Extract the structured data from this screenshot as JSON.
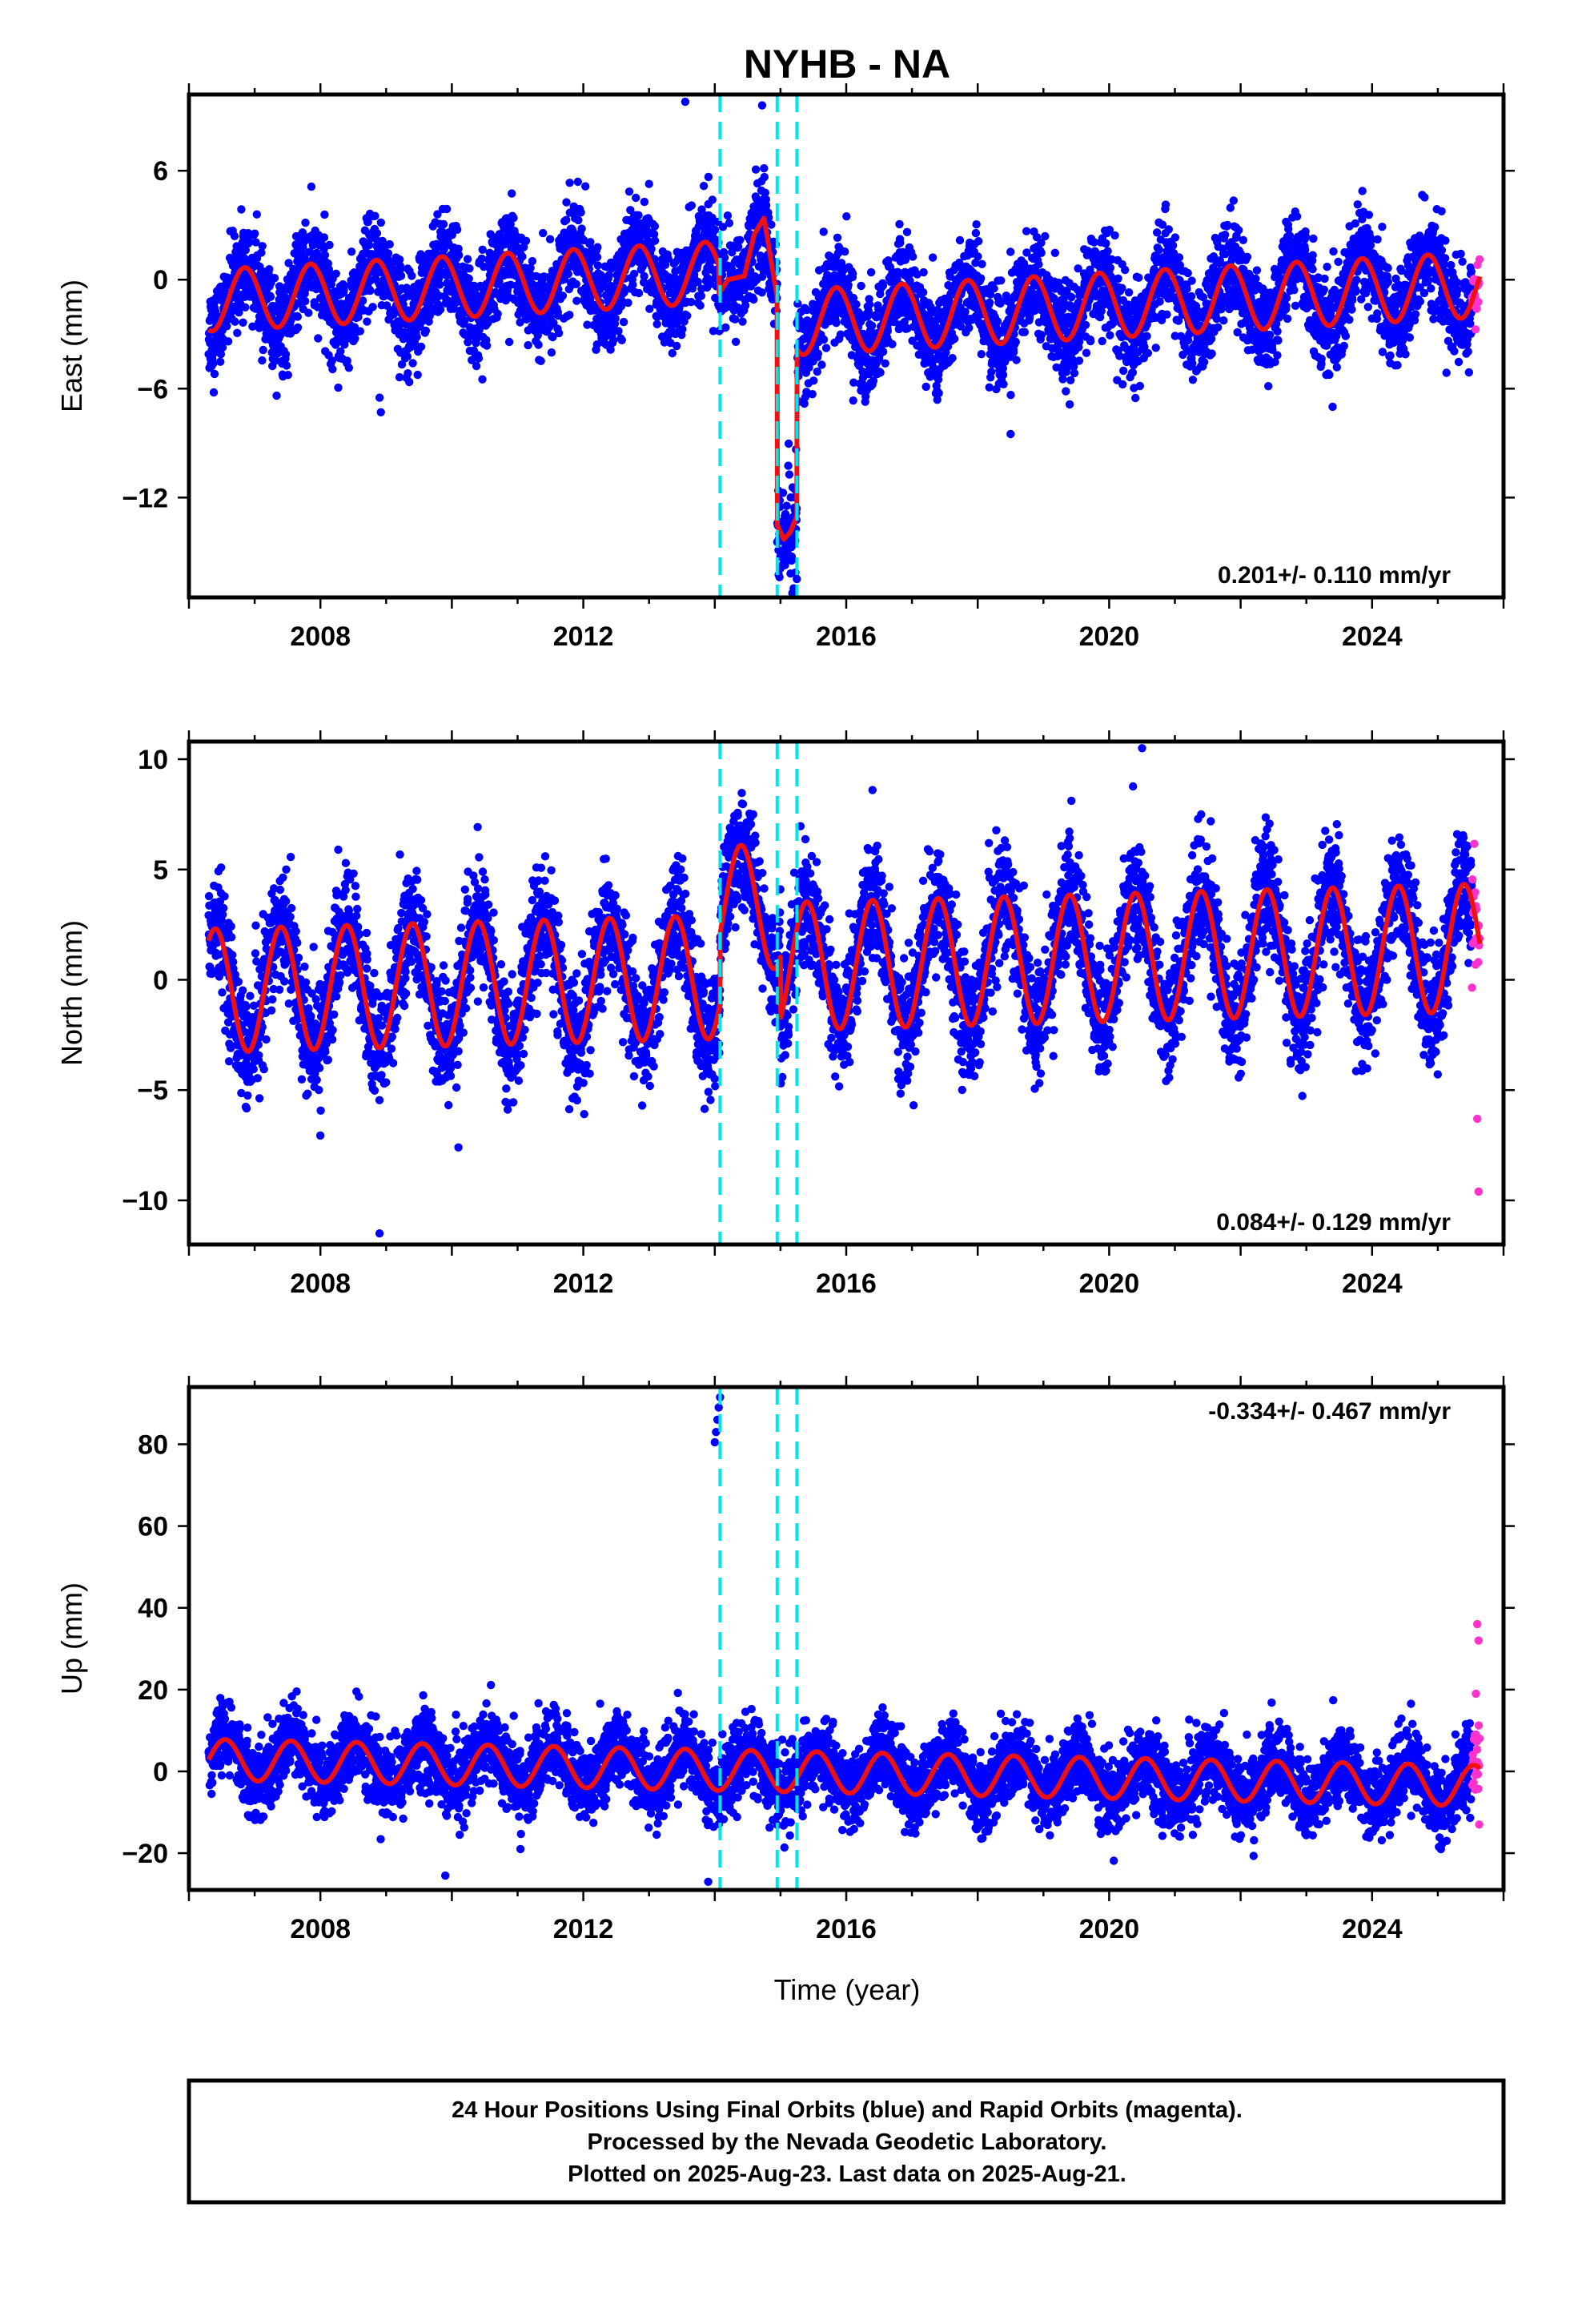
{
  "title": "NYHB - NA",
  "xlabel": "Time (year)",
  "caption": [
    "24 Hour Positions Using Final Orbits (blue) and Rapid Orbits (magenta).",
    "Processed by the Nevada Geodetic Laboratory.",
    "Plotted on 2025-Aug-23. Last data on 2025-Aug-21."
  ],
  "colors": {
    "final_orbits": "#0000ff",
    "rapid_orbits": "#ff33cc",
    "model": "#ee1111",
    "event_lines": "#00e5ee"
  },
  "chart_data": [
    {
      "type": "scatter",
      "component": "East",
      "ylabel": "East (mm)",
      "xlim": [
        2006.0,
        2026.0
      ],
      "ylim": [
        -17.5,
        10.2
      ],
      "yticks": [
        -12,
        -6,
        0,
        6
      ],
      "xticks": [
        2008,
        2012,
        2016,
        2020,
        2024
      ],
      "rate_text": "0.201+/- 0.110 mm/yr",
      "rate_position": "bottom-right",
      "event_lines": [
        2014.08,
        2014.95,
        2015.25
      ],
      "final_range": [
        2006.3,
        2025.52
      ],
      "rapid_range": [
        2025.52,
        2025.64
      ],
      "model": {
        "segments": [
          {
            "from": 2006.3,
            "to": 2014.06,
            "offset": 0.6,
            "trend": 0.2,
            "amplitude": 1.7,
            "phase": -0.4
          },
          {
            "from": 2014.06,
            "to": 2014.95,
            "points": [
              [
                2014.06,
                -0.8
              ],
              [
                2014.2,
                0.0
              ],
              [
                2014.45,
                0.2
              ],
              [
                2014.6,
                2.5
              ],
              [
                2014.75,
                3.4
              ],
              [
                2014.95,
                -1.0
              ]
            ]
          },
          {
            "from": 2014.95,
            "to": 2015.25,
            "points": [
              [
                2014.95,
                -13.5
              ],
              [
                2015.05,
                -14.3
              ],
              [
                2015.15,
                -13.9
              ],
              [
                2015.25,
                -13.0
              ]
            ]
          },
          {
            "from": 2015.25,
            "to": 2025.64,
            "offset": -2.4,
            "trend": 0.2,
            "amplitude": 1.8,
            "phase": -0.4
          }
        ],
        "noise_sd": 1.3,
        "outliers": [
          [
            2008.9,
            -6.5
          ],
          [
            2008.92,
            -7.3
          ],
          [
            2018.5,
            -8.5
          ],
          [
            2023.4,
            -7.0
          ],
          [
            2013.55,
            9.8
          ],
          [
            2014.72,
            9.6
          ],
          [
            2015.2,
            -17.0
          ]
        ]
      }
    },
    {
      "type": "scatter",
      "component": "North",
      "ylabel": "North (mm)",
      "xlim": [
        2006.0,
        2026.0
      ],
      "ylim": [
        -12.0,
        10.8
      ],
      "yticks": [
        -10,
        -5,
        0,
        5,
        10
      ],
      "xticks": [
        2008,
        2012,
        2016,
        2020,
        2024
      ],
      "rate_text": "0.084+/- 0.129 mm/yr",
      "rate_position": "bottom-right",
      "event_lines": [
        2014.08,
        2014.95,
        2015.25
      ],
      "final_range": [
        2006.3,
        2025.52
      ],
      "rapid_range": [
        2025.52,
        2025.64
      ],
      "model": {
        "segments": [
          {
            "from": 2006.3,
            "to": 2014.08,
            "offset": 0.2,
            "trend": 0.08,
            "amplitude": 2.8,
            "phase": 0.15
          },
          {
            "from": 2014.08,
            "to": 2015.0,
            "offset": 3.3,
            "trend": 0.0,
            "amplitude": 2.8,
            "phase": 0.15
          },
          {
            "from": 2015.0,
            "to": 2025.64,
            "offset": 0.6,
            "trend": 0.08,
            "amplitude": 2.9,
            "phase": 0.15
          }
        ],
        "noise_sd": 1.3,
        "outliers": [
          [
            2008.9,
            -11.5
          ],
          [
            2010.1,
            -7.6
          ],
          [
            2020.5,
            10.5
          ],
          [
            2016.4,
            8.6
          ],
          [
            2025.6,
            -6.3
          ],
          [
            2025.62,
            -9.6
          ]
        ]
      }
    },
    {
      "type": "scatter",
      "component": "Up",
      "ylabel": "Up (mm)",
      "xlim": [
        2006.0,
        2026.0
      ],
      "ylim": [
        -29.0,
        94.0
      ],
      "yticks": [
        -20,
        0,
        20,
        40,
        60,
        80
      ],
      "xticks": [
        2008,
        2012,
        2016,
        2020,
        2024
      ],
      "rate_text": "-0.334+/- 0.467 mm/yr",
      "rate_position": "top-right",
      "event_lines": [
        2014.08,
        2014.95,
        2015.25
      ],
      "final_range": [
        2006.3,
        2025.52
      ],
      "rapid_range": [
        2025.52,
        2025.64
      ],
      "model": {
        "segments": [
          {
            "from": 2006.3,
            "to": 2025.64,
            "offset": 0.0,
            "trend": -0.33,
            "amplitude": 5.0,
            "phase": 0.3
          }
        ],
        "noise_sd": 4.5,
        "outliers": [
          [
            2014.0,
            80.5
          ],
          [
            2014.02,
            83.0
          ],
          [
            2014.04,
            86.0
          ],
          [
            2014.06,
            89.0
          ],
          [
            2014.08,
            91.5
          ],
          [
            2009.9,
            -25.5
          ],
          [
            2013.9,
            -27.0
          ],
          [
            2025.6,
            36.0
          ],
          [
            2025.62,
            32.0
          ],
          [
            2025.58,
            19.0
          ],
          [
            2025.63,
            -13.0
          ]
        ]
      }
    }
  ]
}
